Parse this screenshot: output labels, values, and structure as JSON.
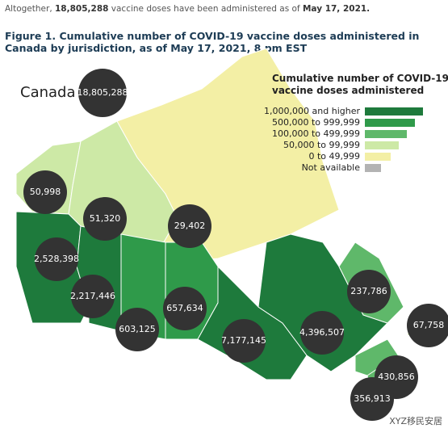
{
  "intro": {
    "prefix": "Altogether,",
    "total": "18,805,288",
    "middle": "vaccine doses have been administered as of",
    "date": "May 17, 2021."
  },
  "figure_title": "Figure 1. Cumulative number of COVID-19 vaccine doses administered in Canada by jurisdiction, as of May 17, 2021, 8 pm EST",
  "country": {
    "label": "Canada",
    "total": "18,805,288"
  },
  "legend": {
    "title": [
      "Cumulative number of COVID-19",
      "vaccine doses administered"
    ],
    "items": [
      {
        "label": "1,000,000 and higher",
        "color": "#1e7a3c"
      },
      {
        "label": "500,000 to 999,999",
        "color": "#2f9a4a"
      },
      {
        "label": "100,000 to 499,999",
        "color": "#5fb86a"
      },
      {
        "label": "50,000 to 99,999",
        "color": "#cde9a6"
      },
      {
        "label": "0 to 49,999",
        "color": "#f3efa5"
      },
      {
        "label": "Not available",
        "color": "#b3b3b3"
      }
    ]
  },
  "jurisdictions": [
    {
      "value": "50,998",
      "color": "#cde9a6"
    },
    {
      "value": "51,320",
      "color": "#cde9a6"
    },
    {
      "value": "29,402",
      "color": "#f3efa5"
    },
    {
      "value": "2,528,398",
      "color": "#1e7a3c"
    },
    {
      "value": "2,217,446",
      "color": "#1e7a3c"
    },
    {
      "value": "603,125",
      "color": "#2f9a4a"
    },
    {
      "value": "657,634",
      "color": "#2f9a4a"
    },
    {
      "value": "7,177,145",
      "color": "#1e7a3c"
    },
    {
      "value": "4,396,507",
      "color": "#1e7a3c"
    },
    {
      "value": "237,786",
      "color": "#5fb86a"
    },
    {
      "value": "67,758",
      "color": "#cde9a6"
    },
    {
      "value": "430,856",
      "color": "#5fb86a"
    },
    {
      "value": "356,913",
      "color": "#5fb86a"
    }
  ],
  "watermark": "XYZ移民安居"
}
